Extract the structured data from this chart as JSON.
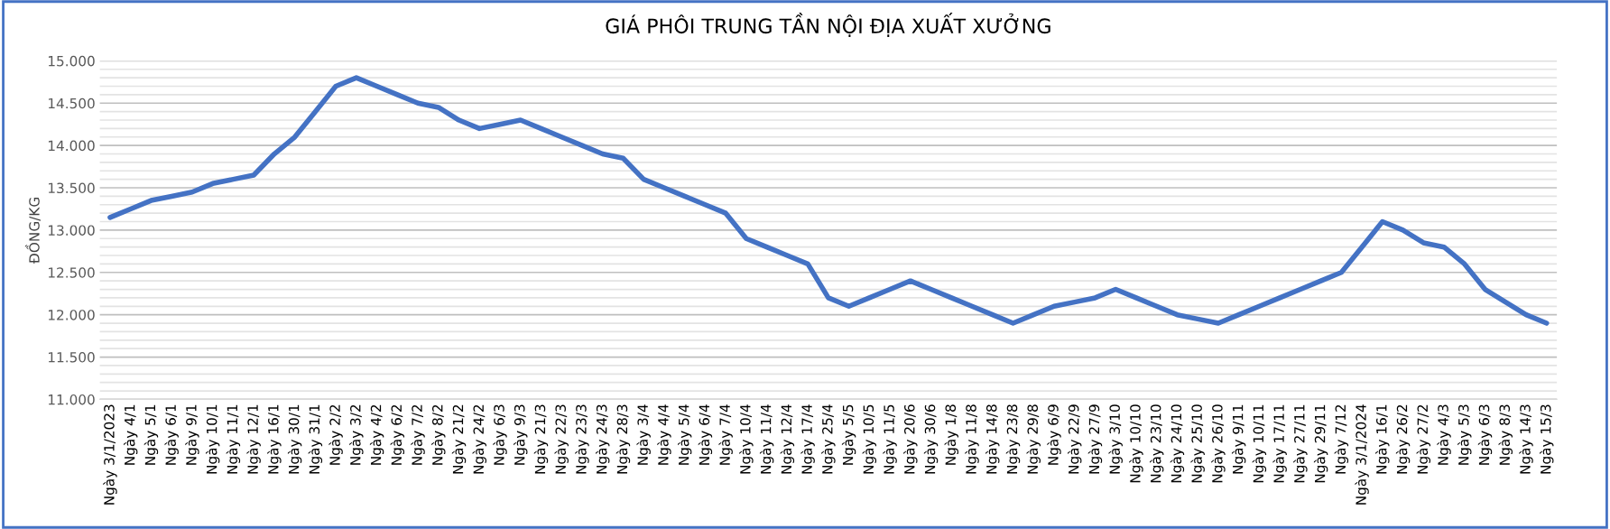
{
  "chart_data": {
    "type": "line",
    "title": "GIÁ PHÔI TRUNG TẦN NỘI ĐỊA XUẤT XƯỞNG",
    "ylabel": "ĐỒNG/KG",
    "categories": [
      "Ngày 3/1/2023",
      "Ngày 4/1",
      "Ngày 5/1",
      "Ngày 6/1",
      "Ngày 9/1",
      "Ngày 10/1",
      "Ngày 11/1",
      "Ngày 12/1",
      "Ngày 16/1",
      "Ngày 30/1",
      "Ngày 31/1",
      "Ngày 2/2",
      "Ngày 3/2",
      "Ngày 4/2",
      "Ngày 6/2",
      "Ngày 7/2",
      "Ngày 8/2",
      "Ngày 21/2",
      "Ngày 24/2",
      "Ngày 6/3",
      "Ngày 9/3",
      "Ngày 21/3",
      "Ngày 22/3",
      "Ngày 23/3",
      "Ngày 24/3",
      "Ngày 28/3",
      "Ngày 3/4",
      "Ngày 4/4",
      "Ngày 5/4",
      "Ngày 6/4",
      "Ngày 7/4",
      "Ngày 10/4",
      "Ngày 11/4",
      "Ngày 12/4",
      "Ngày 17/4",
      "Ngày 25/4",
      "Ngày 5/5",
      "Ngày 10/5",
      "Ngày 11/5",
      "Ngày 20/6",
      "Ngày 30/6",
      "Ngày 1/8",
      "Ngày 11/8",
      "Ngày 14/8",
      "Ngày 23/8",
      "Ngày 29/8",
      "Ngày 6/9",
      "Ngày 22/9",
      "Ngày 27/9",
      "Ngày 3/10",
      "Ngày 10/10",
      "Ngày 23/10",
      "Ngày 24/10",
      "Ngày 25/10",
      "Ngày 26/10",
      "Ngày 9/11",
      "Ngày 10/11",
      "Ngày 17/11",
      "Ngày 27/11",
      "Ngày 29/11",
      "Ngày 7/12",
      "Ngày 3/1/2024",
      "Ngày 16/1",
      "Ngày 26/2",
      "Ngày 27/2",
      "Ngày 4/3",
      "Ngày 5/3",
      "Ngày 6/3",
      "Ngày 8/3",
      "Ngày 14/3",
      "Ngày 15/3"
    ],
    "series": [
      {
        "color": "#4472c4",
        "values": [
          13150,
          13250,
          13350,
          13400,
          13450,
          13550,
          13600,
          13650,
          13900,
          14100,
          14400,
          14700,
          14800,
          14700,
          14600,
          14500,
          14450,
          14300,
          14200,
          14250,
          14300,
          14200,
          14100,
          14000,
          13900,
          13850,
          13600,
          13500,
          13400,
          13300,
          13200,
          12900,
          12800,
          12700,
          12600,
          12200,
          12100,
          12200,
          12300,
          12400,
          12300,
          12200,
          12100,
          12000,
          11900,
          12000,
          12100,
          12150,
          12200,
          12300,
          12200,
          12100,
          12000,
          11950,
          11900,
          12000,
          12100,
          12200,
          12300,
          12400,
          12500,
          12800,
          13100,
          13000,
          12850,
          12800,
          12600,
          12300,
          12150,
          12000,
          11900
        ]
      }
    ],
    "ylim": [
      11000,
      15000
    ],
    "yticks": [
      {
        "value": 11000,
        "label": "11.000"
      },
      {
        "value": 11100,
        "label": null
      },
      {
        "value": 11200,
        "label": null
      },
      {
        "value": 11300,
        "label": null
      },
      {
        "value": 11400,
        "label": null
      },
      {
        "value": 11500,
        "label": "11.500"
      },
      {
        "value": 11600,
        "label": null
      },
      {
        "value": 11700,
        "label": null
      },
      {
        "value": 11800,
        "label": null
      },
      {
        "value": 11900,
        "label": null
      },
      {
        "value": 12000,
        "label": "12.000"
      },
      {
        "value": 12100,
        "label": null
      },
      {
        "value": 12200,
        "label": null
      },
      {
        "value": 12300,
        "label": null
      },
      {
        "value": 12400,
        "label": null
      },
      {
        "value": 12500,
        "label": "12.500"
      },
      {
        "value": 12600,
        "label": null
      },
      {
        "value": 12700,
        "label": null
      },
      {
        "value": 12800,
        "label": null
      },
      {
        "value": 12900,
        "label": null
      },
      {
        "value": 13000,
        "label": "13.000"
      },
      {
        "value": 13100,
        "label": null
      },
      {
        "value": 13200,
        "label": null
      },
      {
        "value": 13300,
        "label": null
      },
      {
        "value": 13400,
        "label": null
      },
      {
        "value": 13500,
        "label": "13.500"
      },
      {
        "value": 13600,
        "label": null
      },
      {
        "value": 13700,
        "label": null
      },
      {
        "value": 13800,
        "label": null
      },
      {
        "value": 13900,
        "label": null
      },
      {
        "value": 14000,
        "label": "14.000"
      },
      {
        "value": 14100,
        "label": null
      },
      {
        "value": 14200,
        "label": null
      },
      {
        "value": 14300,
        "label": null
      },
      {
        "value": 14400,
        "label": null
      },
      {
        "value": 14500,
        "label": "14.500"
      },
      {
        "value": 14600,
        "label": null
      },
      {
        "value": 14700,
        "label": null
      },
      {
        "value": 14800,
        "label": null
      },
      {
        "value": 14900,
        "label": null
      },
      {
        "value": 15000,
        "label": "15.000"
      }
    ],
    "grid": "y",
    "legend": false,
    "marker": "none",
    "line_style": "solid"
  }
}
